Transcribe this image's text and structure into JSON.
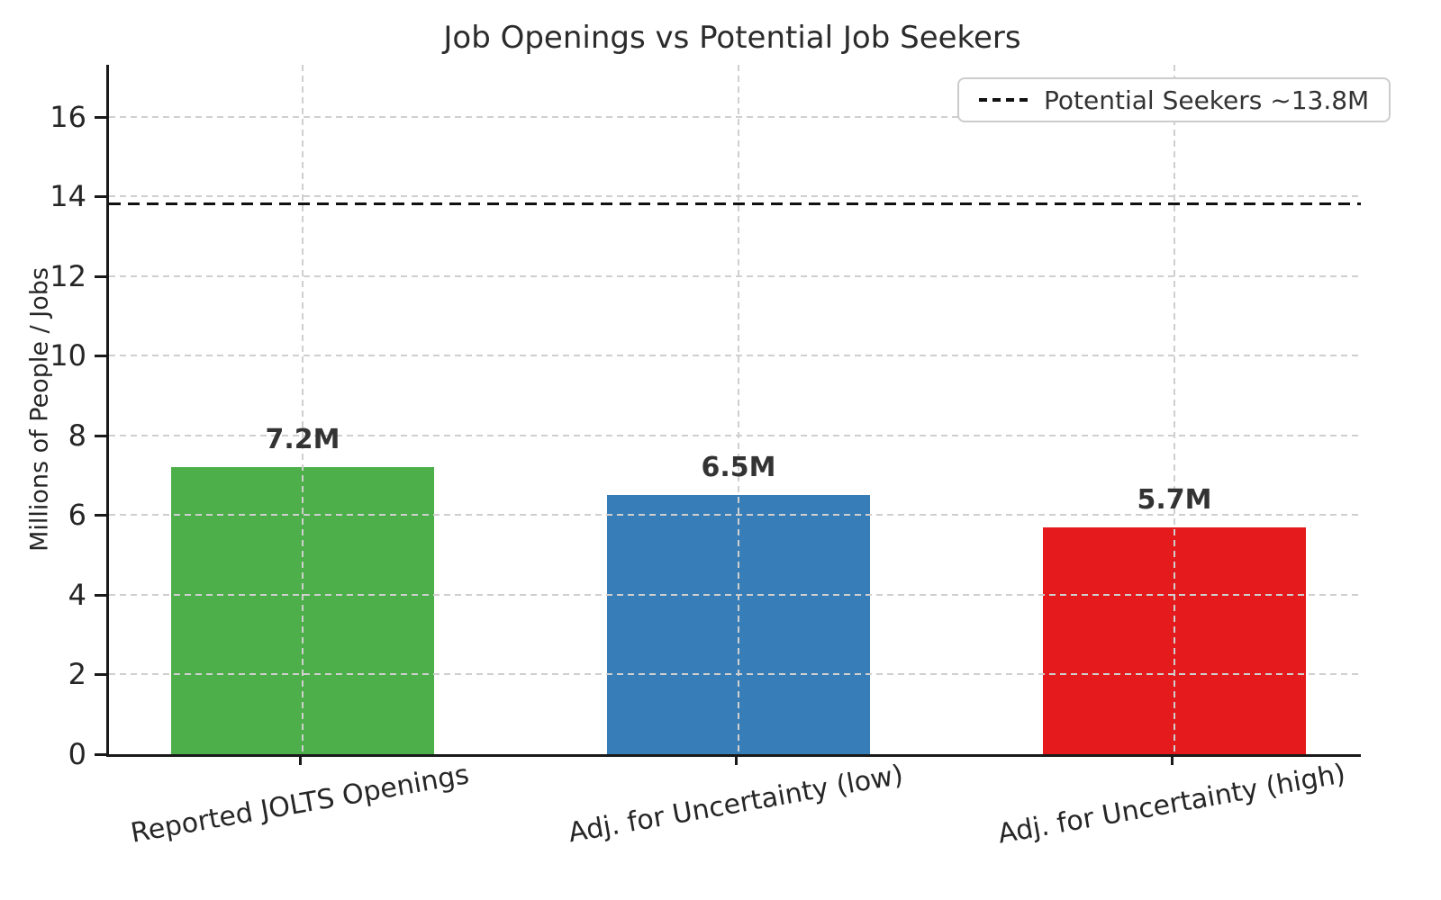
{
  "chart_data": {
    "type": "bar",
    "title": "Job Openings vs Potential Job Seekers",
    "ylabel": "Millions of People / Jobs",
    "xlabel": "",
    "categories": [
      "Reported JOLTS Openings",
      "Adj. for Uncertainty (low)",
      "Adj. for Uncertainty (high)"
    ],
    "values": [
      7.2,
      6.5,
      5.7
    ],
    "bar_value_labels": [
      "7.2M",
      "6.5M",
      "5.7M"
    ],
    "bar_colors": [
      "#4DAF4A",
      "#377EB8",
      "#E41A1C"
    ],
    "yticks": [
      0,
      2,
      4,
      6,
      8,
      10,
      12,
      14,
      16
    ],
    "ylim": [
      0,
      17.3
    ],
    "grid": true,
    "grid_color": "#cfcfcf",
    "reference_line": {
      "value": 13.8,
      "label": "Potential Seekers ~13.8M",
      "color": "#111111",
      "style": "dashed"
    },
    "legend_position": "upper right"
  }
}
